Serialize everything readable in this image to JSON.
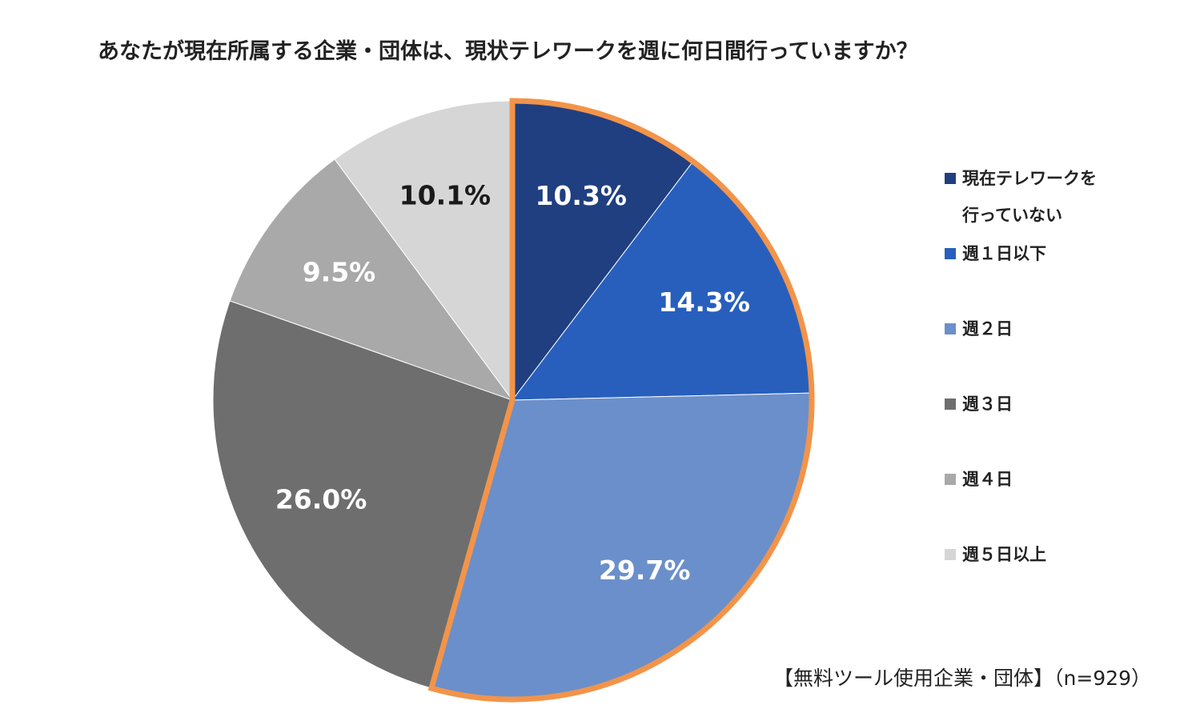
{
  "chart_data": {
    "type": "pie",
    "title": "あなたが現在所属する企業・団体は、現状テレワークを週に何日間行っていますか？",
    "categories": [
      "現在テレワークを行っていない",
      "週１日以下",
      "週２日",
      "週３日",
      "週４日",
      "週５日以上"
    ],
    "values": [
      10.3,
      14.3,
      29.7,
      26.0,
      9.5,
      10.1
    ],
    "labels": [
      "10.3%",
      "14.3%",
      "29.7%",
      "26.0%",
      "9.5%",
      "10.1%"
    ],
    "colors": [
      "#203f80",
      "#285fbd",
      "#6b8fca",
      "#6e6e6e",
      "#a9a9a9",
      "#d6d6d6"
    ],
    "label_colors": [
      "#ffffff",
      "#ffffff",
      "#ffffff",
      "#ffffff",
      "#ffffff",
      "#1a1a1a"
    ],
    "highlight": {
      "slices": [
        0,
        1,
        2
      ],
      "outline_color": "#f2944a"
    },
    "legend_position": "right",
    "note": "【無料ツール使用企業・団体】（n=929）"
  },
  "legend": [
    {
      "line1": "現在テレワークを",
      "line2": "行っていない"
    },
    {
      "line1": "週１日以下",
      "line2": ""
    },
    {
      "line1": "週２日",
      "line2": ""
    },
    {
      "line1": "週３日",
      "line2": ""
    },
    {
      "line1": "週４日",
      "line2": ""
    },
    {
      "line1": "週５日以上",
      "line2": ""
    }
  ]
}
